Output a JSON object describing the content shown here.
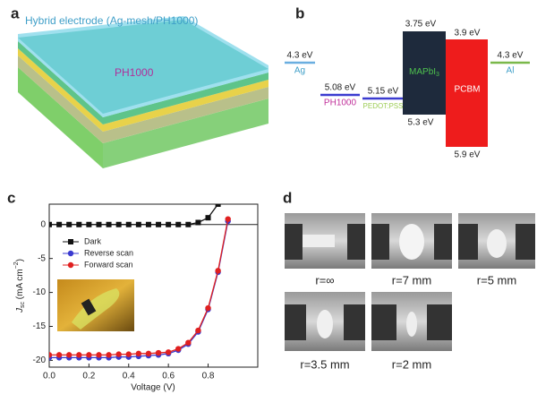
{
  "panel_a": {
    "label": "a",
    "caption": "Hybrid electrode (Ag-mesh/PH1000)",
    "layer": "PH1000"
  },
  "panel_b": {
    "label": "b",
    "levels": [
      {
        "name": "Ag",
        "energy": "4.3 eV"
      },
      {
        "name": "PH1000",
        "energy": "5.08 eV"
      },
      {
        "name": "PEDOT:PSS",
        "energy": "5.15 eV"
      },
      {
        "name": "MAPbI",
        "name_subscript": "3",
        "lumo": "3.75 eV",
        "homo": "5.3 eV"
      },
      {
        "name": "PCBM",
        "lumo": "3.9 eV",
        "homo": "5.9 eV"
      },
      {
        "name": "Al",
        "energy": "4.3 eV"
      }
    ]
  },
  "chart_data": {
    "type": "line",
    "panel_label": "c",
    "xlabel": "Voltage (V)",
    "ylabel": "J",
    "ylabel_sub": "sc",
    "ylabel_unit": " (mA cm",
    "ylabel_sup": "−2",
    "ylabel_end": ")",
    "x": [
      0,
      0.05,
      0.1,
      0.15,
      0.2,
      0.25,
      0.3,
      0.35,
      0.4,
      0.45,
      0.5,
      0.55,
      0.6,
      0.65,
      0.7,
      0.75,
      0.8,
      0.85,
      0.9
    ],
    "series": [
      {
        "name": "Dark",
        "color": "#111111",
        "marker": "square",
        "values": [
          0,
          0,
          0,
          0,
          0,
          0,
          0,
          0,
          0,
          0,
          0,
          0,
          0,
          0,
          0,
          0.3,
          1,
          3,
          null
        ]
      },
      {
        "name": "Reverse scan",
        "color": "#3a3ad0",
        "marker": "circle",
        "values": [
          -19.6,
          -19.6,
          -19.6,
          -19.6,
          -19.6,
          -19.6,
          -19.6,
          -19.5,
          -19.5,
          -19.4,
          -19.3,
          -19.2,
          -19,
          -18.5,
          -17.6,
          -15.8,
          -12.5,
          -7,
          0.5
        ]
      },
      {
        "name": "Forward scan",
        "color": "#e02020",
        "marker": "circle",
        "values": [
          -19.2,
          -19.2,
          -19.2,
          -19.2,
          -19.2,
          -19.2,
          -19.2,
          -19.1,
          -19.1,
          -19,
          -19,
          -18.9,
          -18.8,
          -18.3,
          -17.4,
          -15.6,
          -12.3,
          -6.8,
          0.8
        ]
      }
    ],
    "xlim": [
      0,
      1.05
    ],
    "ylim": [
      -21,
      3
    ],
    "xticks": [
      {
        "value": 0,
        "label": "0.0"
      },
      0.2,
      0.4,
      0.6,
      0.8
    ],
    "yticks": [
      -20,
      -15,
      -10,
      -5,
      0
    ],
    "legend": "upper left"
  },
  "panel_d": {
    "label": "d",
    "photos": [
      {
        "caption": "r=∞"
      },
      {
        "caption": "r=7 mm"
      },
      {
        "caption": "r=5 mm"
      },
      {
        "caption": "r=3.5 mm"
      },
      {
        "caption": "r=2 mm"
      }
    ]
  }
}
